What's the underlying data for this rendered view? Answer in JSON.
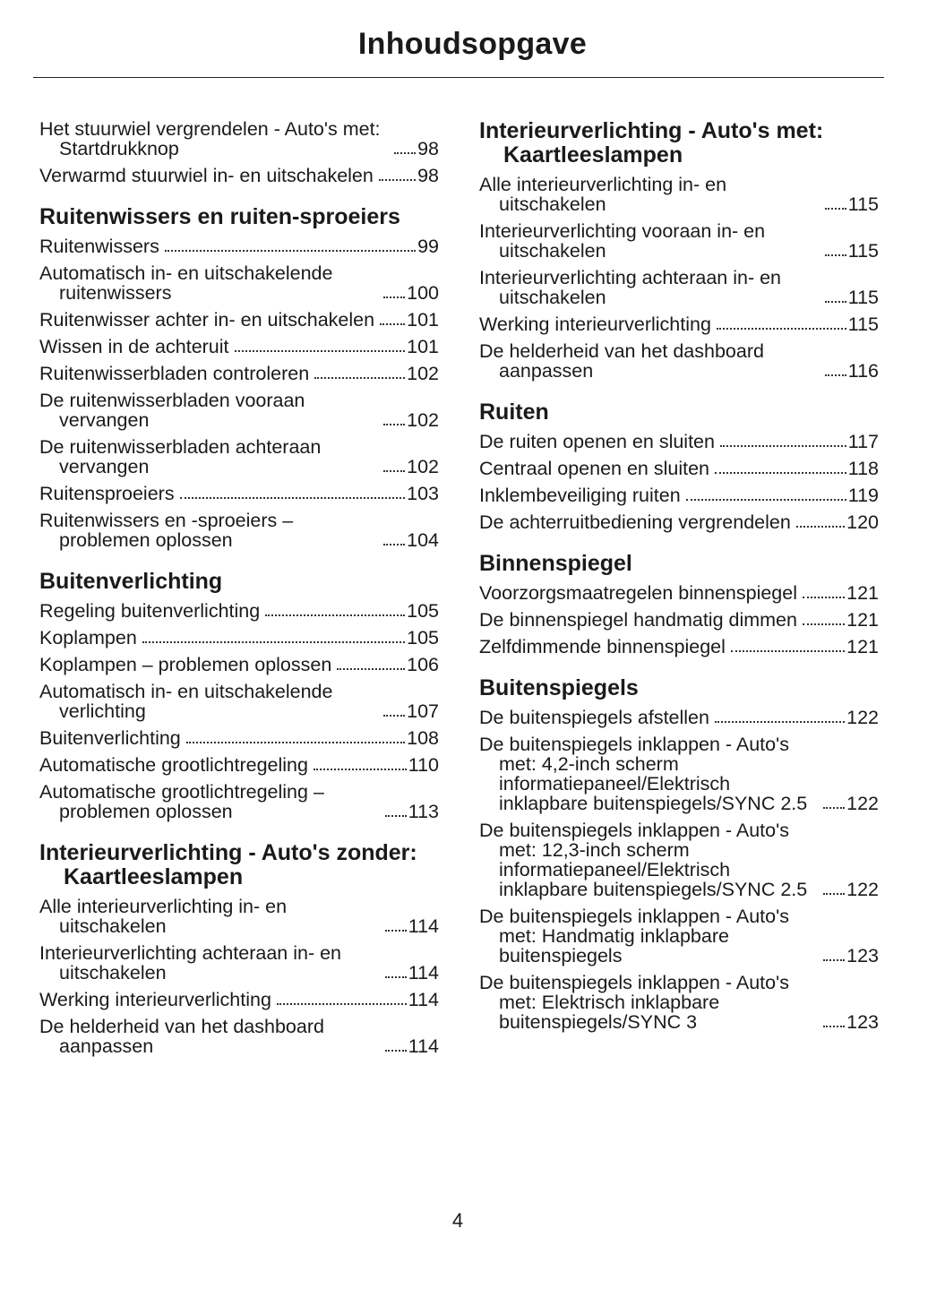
{
  "title": "Inhoudsopgave",
  "columns": [
    {
      "sections": [
        {
          "entries": [
            {
              "text": "Het stuurwiel vergrendelen - Auto's met: Startdrukknop",
              "page": 98
            },
            {
              "text": "Verwarmd stuurwiel in- en uitschakelen",
              "page": 98
            }
          ]
        },
        {
          "heading": "Ruitenwissers en ruiten-sproeiers",
          "entries": [
            {
              "text": "Ruitenwissers",
              "page": 99
            },
            {
              "text": "Automatisch in- en uitschakelende ruitenwissers",
              "page": 100
            },
            {
              "text": "Ruitenwisser achter in- en uitschakelen",
              "page": 101
            },
            {
              "text": "Wissen in de achteruit",
              "page": 101
            },
            {
              "text": "Ruitenwisserbladen controleren",
              "page": 102
            },
            {
              "text": "De ruitenwisserbladen vooraan vervangen",
              "page": 102
            },
            {
              "text": "De ruitenwisserbladen achteraan vervangen",
              "page": 102
            },
            {
              "text": "Ruitensproeiers",
              "page": 103
            },
            {
              "text": "Ruitenwissers en -sproeiers – problemen oplossen",
              "page": 104
            }
          ]
        },
        {
          "heading": "Buitenverlichting",
          "entries": [
            {
              "text": "Regeling buitenverlichting",
              "page": 105
            },
            {
              "text": "Koplampen",
              "page": 105
            },
            {
              "text": "Koplampen – problemen oplossen",
              "page": 106
            },
            {
              "text": "Automatisch in- en uitschakelende verlichting",
              "page": 107
            },
            {
              "text": "Buitenverlichting",
              "page": 108
            },
            {
              "text": "Automatische grootlichtregeling",
              "page": 110
            },
            {
              "text": "Automatische grootlichtregeling – problemen oplossen",
              "page": 113
            }
          ]
        },
        {
          "heading": "Interieurverlichting - Auto's zonder: Kaartleeslampen",
          "entries": [
            {
              "text": "Alle interieurverlichting in- en uitschakelen",
              "page": 114
            },
            {
              "text": "Interieurverlichting achteraan in- en uitschakelen",
              "page": 114
            },
            {
              "text": "Werking interieurverlichting",
              "page": 114
            },
            {
              "text": "De helderheid van het dashboard aanpassen",
              "page": 114
            }
          ]
        }
      ]
    },
    {
      "sections": [
        {
          "heading": "Interieurverlichting - Auto's met: Kaartleeslampen",
          "entries": [
            {
              "text": "Alle interieurverlichting in- en uitschakelen",
              "page": 115
            },
            {
              "text": "Interieurverlichting vooraan in- en uitschakelen",
              "page": 115
            },
            {
              "text": "Interieurverlichting achteraan in- en uitschakelen",
              "page": 115
            },
            {
              "text": "Werking interieurverlichting",
              "page": 115
            },
            {
              "text": "De helderheid van het dashboard aanpassen",
              "page": 116
            }
          ]
        },
        {
          "heading": "Ruiten",
          "entries": [
            {
              "text": "De ruiten openen en sluiten",
              "page": 117
            },
            {
              "text": "Centraal openen en sluiten",
              "page": 118
            },
            {
              "text": "Inklembeveiliging ruiten",
              "page": 119
            },
            {
              "text": "De achterruitbediening vergrendelen",
              "page": 120
            }
          ]
        },
        {
          "heading": "Binnenspiegel",
          "entries": [
            {
              "text": "Voorzorgsmaatregelen binnenspiegel",
              "page": 121
            },
            {
              "text": "De binnenspiegel handmatig dimmen",
              "page": 121
            },
            {
              "text": "Zelfdimmende binnenspiegel",
              "page": 121
            }
          ]
        },
        {
          "heading": "Buitenspiegels",
          "entries": [
            {
              "text": "De buitenspiegels afstellen",
              "page": 122
            },
            {
              "text": "De buitenspiegels inklappen - Auto's met: 4,2-inch scherm informatiepaneel/Elektrisch inklapbare buitenspiegels/SYNC 2.5",
              "page": 122
            },
            {
              "text": "De buitenspiegels inklappen - Auto's met: 12,3-inch scherm informatiepaneel/Elektrisch inklapbare buitenspiegels/SYNC 2.5",
              "page": 122
            },
            {
              "text": "De buitenspiegels inklappen - Auto's met: Handmatig inklapbare buitenspiegels",
              "page": 123
            },
            {
              "text": "De buitenspiegels inklappen - Auto's met: Elektrisch inklapbare buitenspiegels/SYNC 3",
              "page": 123
            }
          ]
        }
      ]
    }
  ],
  "page_number": "4"
}
